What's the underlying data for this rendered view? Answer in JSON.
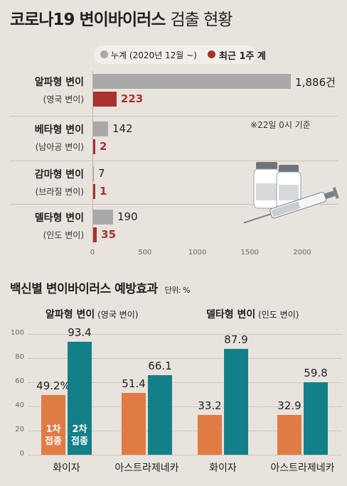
{
  "header": {
    "title_bold": "코로나19 변이바이러스",
    "title_light": "검출 현황"
  },
  "legend": [
    {
      "label": "누계 (2020년 12월 ~)",
      "color": "#a9a9a9"
    },
    {
      "label": "최근 1주 계",
      "color": "#a8322e"
    }
  ],
  "note": "※22일 0시 기준",
  "sec2": {
    "title": "백신별 변이바이러스 예방효과",
    "unit": "단위: %"
  },
  "chart_data": [
    {
      "type": "bar",
      "orientation": "horizontal",
      "title": "코로나19 변이바이러스 검출 현황",
      "categories": [
        {
          "name": "알파형 변이",
          "sub": "(영국 변이)"
        },
        {
          "name": "베타형 변이",
          "sub": "(남아공 변이)"
        },
        {
          "name": "감마형 변이",
          "sub": "(브라질 변이)"
        },
        {
          "name": "델타형 변이",
          "sub": "(인도 변이)"
        }
      ],
      "series": [
        {
          "name": "누계 (2020년 12월 ~)",
          "values": [
            1886,
            142,
            7,
            190
          ],
          "labels": [
            "1,886건",
            "142",
            "7",
            "190"
          ],
          "color": "#a9a9a9"
        },
        {
          "name": "최근 1주 계",
          "values": [
            223,
            2,
            1,
            35
          ],
          "labels": [
            "223",
            "2",
            "1",
            "35"
          ],
          "color": "#a8322e"
        }
      ],
      "xlim": [
        0,
        2000
      ],
      "xticks": [
        "0",
        "500",
        "1000",
        "1500",
        "2000"
      ],
      "grid": false
    },
    {
      "type": "bar",
      "title": "백신별 변이바이러스 예방효과",
      "unit": "단위: %",
      "groups": [
        {
          "name": "알파형 변이",
          "sub": "(영국 변이)",
          "vaccines": [
            "화이자",
            "아스트라제네카"
          ],
          "dose1": [
            49.2,
            51.4
          ],
          "dose2": [
            93.4,
            66.1
          ],
          "dose1_labels": [
            "49.2%",
            "51.4"
          ],
          "dose2_labels": [
            "93.4",
            "66.1"
          ]
        },
        {
          "name": "델타형 변이",
          "sub": "(인도 변이)",
          "vaccines": [
            "화이자",
            "아스트라제네카"
          ],
          "dose1": [
            33.2,
            32.9
          ],
          "dose2": [
            87.9,
            59.8
          ],
          "dose1_labels": [
            "33.2",
            "32.9"
          ],
          "dose2_labels": [
            "87.9",
            "59.8"
          ]
        }
      ],
      "series": [
        {
          "name": "1차 접종",
          "color": "#e07b45"
        },
        {
          "name": "2차 접종",
          "color": "#138088"
        }
      ],
      "ylim": [
        0,
        100
      ],
      "yticks": [
        "0",
        "20",
        "40",
        "60",
        "80",
        "100"
      ],
      "grid": true
    }
  ]
}
